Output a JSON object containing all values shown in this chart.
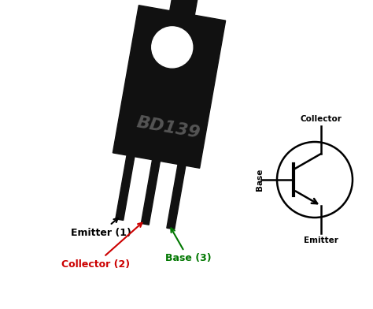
{
  "bg_color": "#ffffff",
  "transistor_body_color": "#111111",
  "transistor_text": "BD139",
  "transistor_text_color": "#555555",
  "emitter_label": "Emitter (1)",
  "collector_label": "Collector (2)",
  "base_label": "Base (3)",
  "emitter_color": "#000000",
  "collector_color": "#cc0000",
  "base_color": "#007700",
  "schematic_label_collector": "Collector",
  "schematic_label_base": "Base",
  "schematic_label_emitter": "Emitter",
  "tilt_deg": -10
}
